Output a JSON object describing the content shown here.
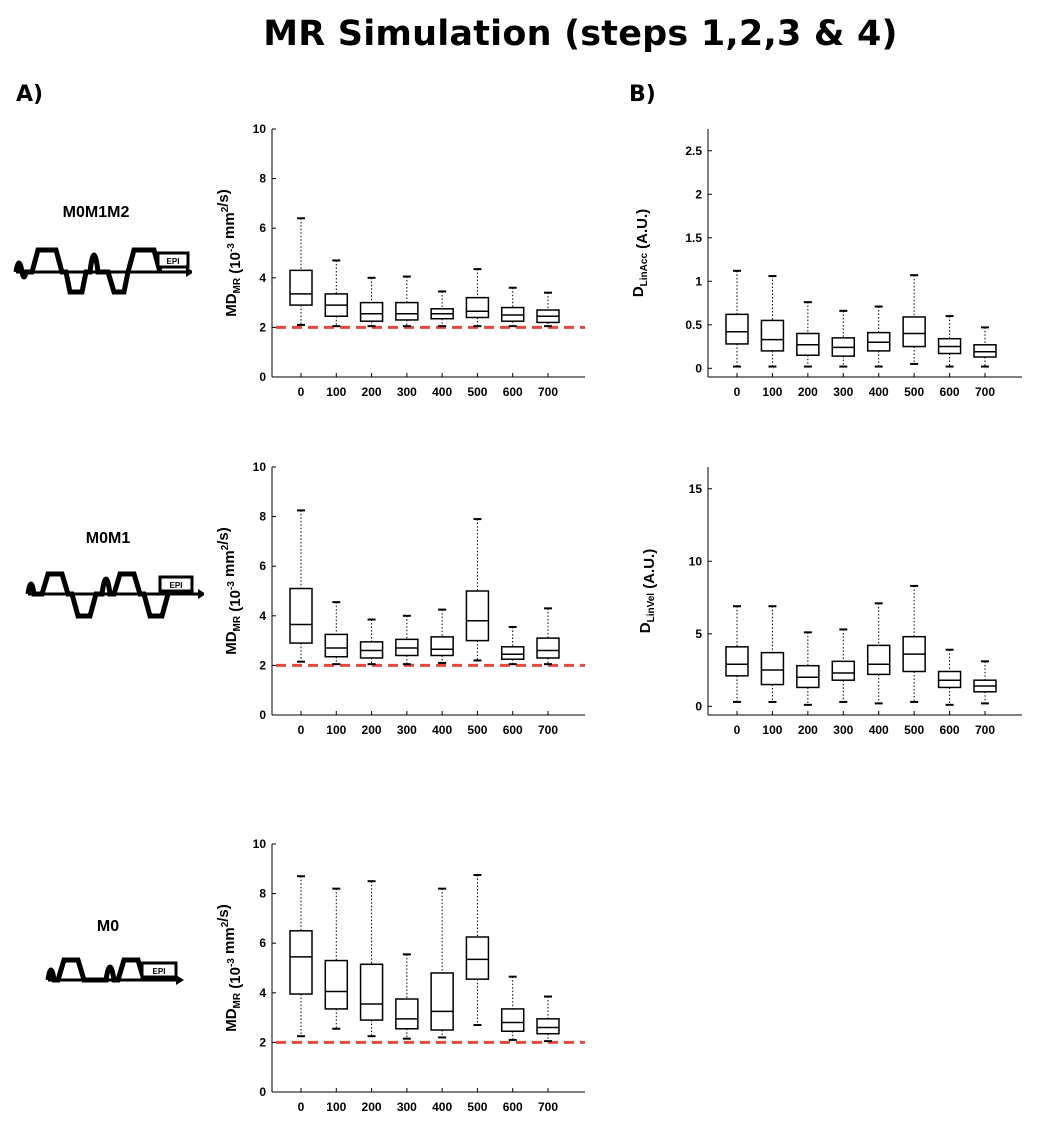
{
  "title": "MR Simulation (steps 1,2,3 & 4)",
  "panel_labels": {
    "a": "A)",
    "b": "B)"
  },
  "sequences": [
    {
      "name": "M0M1M2",
      "epi": "EPI"
    },
    {
      "name": "M0M1",
      "epi": "EPI"
    },
    {
      "name": "M0",
      "epi": "EPI"
    }
  ],
  "colors": {
    "reference_line": "#e8473f",
    "box": "#000000",
    "axis": "#000000"
  },
  "chart_data": [
    {
      "id": "md-m0m1m2",
      "type": "box",
      "categories": [
        "0",
        "100",
        "200",
        "300",
        "400",
        "500",
        "600",
        "700"
      ],
      "ylim": [
        0,
        10
      ],
      "yticks": [
        "0",
        "2",
        "4",
        "6",
        "8",
        "10"
      ],
      "ytick_values": [
        0,
        2,
        4,
        6,
        8,
        10
      ],
      "ylabel": {
        "main": "MD",
        "sub": "MR",
        "rest": " (10",
        "sup": "-3",
        "unit": " mm",
        "sup2": "2",
        "tail": "/s)"
      },
      "reference_line": 2,
      "boxes": [
        {
          "min": 2.1,
          "q1": 2.9,
          "median": 3.35,
          "q3": 4.3,
          "max": 6.4
        },
        {
          "min": 2.05,
          "q1": 2.45,
          "median": 2.9,
          "q3": 3.35,
          "max": 4.7
        },
        {
          "min": 2.05,
          "q1": 2.25,
          "median": 2.55,
          "q3": 3.0,
          "max": 4.0
        },
        {
          "min": 2.05,
          "q1": 2.3,
          "median": 2.55,
          "q3": 3.0,
          "max": 4.05
        },
        {
          "min": 2.05,
          "q1": 2.35,
          "median": 2.55,
          "q3": 2.75,
          "max": 3.45
        },
        {
          "min": 2.05,
          "q1": 2.4,
          "median": 2.65,
          "q3": 3.2,
          "max": 4.35
        },
        {
          "min": 2.05,
          "q1": 2.25,
          "median": 2.5,
          "q3": 2.8,
          "max": 3.6
        },
        {
          "min": 2.05,
          "q1": 2.2,
          "median": 2.45,
          "q3": 2.7,
          "max": 3.4
        }
      ]
    },
    {
      "id": "d-linacc",
      "type": "box",
      "categories": [
        "0",
        "100",
        "200",
        "300",
        "400",
        "500",
        "600",
        "700"
      ],
      "ylim": [
        -0.1,
        2.75
      ],
      "yticks": [
        "0",
        "0.5",
        "1",
        "1.5",
        "2",
        "2.5"
      ],
      "ytick_values": [
        0,
        0.5,
        1,
        1.5,
        2,
        2.5
      ],
      "ylabel": {
        "main": "D",
        "sub": "LinAcc",
        "rest": " (A.U.)"
      },
      "boxes": [
        {
          "min": 0.02,
          "q1": 0.28,
          "median": 0.42,
          "q3": 0.62,
          "max": 1.12
        },
        {
          "min": 0.02,
          "q1": 0.2,
          "median": 0.33,
          "q3": 0.55,
          "max": 1.06
        },
        {
          "min": 0.02,
          "q1": 0.15,
          "median": 0.27,
          "q3": 0.4,
          "max": 0.76
        },
        {
          "min": 0.02,
          "q1": 0.14,
          "median": 0.24,
          "q3": 0.35,
          "max": 0.66
        },
        {
          "min": 0.02,
          "q1": 0.2,
          "median": 0.3,
          "q3": 0.41,
          "max": 0.71
        },
        {
          "min": 0.05,
          "q1": 0.25,
          "median": 0.4,
          "q3": 0.59,
          "max": 1.07
        },
        {
          "min": 0.02,
          "q1": 0.17,
          "median": 0.25,
          "q3": 0.34,
          "max": 0.6
        },
        {
          "min": 0.02,
          "q1": 0.13,
          "median": 0.19,
          "q3": 0.27,
          "max": 0.47
        }
      ]
    },
    {
      "id": "md-m0m1",
      "type": "box",
      "categories": [
        "0",
        "100",
        "200",
        "300",
        "400",
        "500",
        "600",
        "700"
      ],
      "ylim": [
        0,
        10
      ],
      "yticks": [
        "0",
        "2",
        "4",
        "6",
        "8",
        "10"
      ],
      "ytick_values": [
        0,
        2,
        4,
        6,
        8,
        10
      ],
      "ylabel": {
        "main": "MD",
        "sub": "MR",
        "rest": " (10",
        "sup": "-3",
        "unit": " mm",
        "sup2": "2",
        "tail": "/s)"
      },
      "reference_line": 2,
      "boxes": [
        {
          "min": 2.15,
          "q1": 2.9,
          "median": 3.65,
          "q3": 5.1,
          "max": 8.25
        },
        {
          "min": 2.05,
          "q1": 2.35,
          "median": 2.7,
          "q3": 3.25,
          "max": 4.55
        },
        {
          "min": 2.05,
          "q1": 2.3,
          "median": 2.6,
          "q3": 2.95,
          "max": 3.85
        },
        {
          "min": 2.05,
          "q1": 2.4,
          "median": 2.7,
          "q3": 3.05,
          "max": 4.0
        },
        {
          "min": 2.1,
          "q1": 2.4,
          "median": 2.65,
          "q3": 3.15,
          "max": 4.25
        },
        {
          "min": 2.2,
          "q1": 3.0,
          "median": 3.8,
          "q3": 5.0,
          "max": 7.9
        },
        {
          "min": 2.05,
          "q1": 2.25,
          "median": 2.45,
          "q3": 2.75,
          "max": 3.55
        },
        {
          "min": 2.05,
          "q1": 2.3,
          "median": 2.6,
          "q3": 3.1,
          "max": 4.3
        }
      ]
    },
    {
      "id": "d-linvel",
      "type": "box",
      "categories": [
        "0",
        "100",
        "200",
        "300",
        "400",
        "500",
        "600",
        "700"
      ],
      "ylim": [
        -0.6,
        16.5
      ],
      "yticks": [
        "0",
        "5",
        "10",
        "15"
      ],
      "ytick_values": [
        0,
        5,
        10,
        15
      ],
      "ylabel": {
        "main": "D",
        "sub": "LinVel",
        "rest": " (A.U.)"
      },
      "boxes": [
        {
          "min": 0.3,
          "q1": 2.1,
          "median": 2.9,
          "q3": 4.1,
          "max": 6.9
        },
        {
          "min": 0.3,
          "q1": 1.5,
          "median": 2.5,
          "q3": 3.7,
          "max": 6.9
        },
        {
          "min": 0.1,
          "q1": 1.3,
          "median": 2.0,
          "q3": 2.8,
          "max": 5.1
        },
        {
          "min": 0.3,
          "q1": 1.8,
          "median": 2.3,
          "q3": 3.1,
          "max": 5.3
        },
        {
          "min": 0.2,
          "q1": 2.2,
          "median": 2.9,
          "q3": 4.2,
          "max": 7.1
        },
        {
          "min": 0.3,
          "q1": 2.4,
          "median": 3.6,
          "q3": 4.8,
          "max": 8.3
        },
        {
          "min": 0.1,
          "q1": 1.3,
          "median": 1.8,
          "q3": 2.4,
          "max": 3.9
        },
        {
          "min": 0.2,
          "q1": 1.0,
          "median": 1.4,
          "q3": 1.8,
          "max": 3.1
        }
      ]
    },
    {
      "id": "md-m0",
      "type": "box",
      "categories": [
        "0",
        "100",
        "200",
        "300",
        "400",
        "500",
        "600",
        "700"
      ],
      "ylim": [
        0,
        10
      ],
      "yticks": [
        "0",
        "2",
        "4",
        "6",
        "8",
        "10"
      ],
      "ytick_values": [
        0,
        2,
        4,
        6,
        8,
        10
      ],
      "ylabel": {
        "main": "MD",
        "sub": "MR",
        "rest": " (10",
        "sup": "-3",
        "unit": " mm",
        "sup2": "2",
        "tail": "/s)"
      },
      "reference_line": 2,
      "boxes": [
        {
          "min": 2.25,
          "q1": 3.95,
          "median": 5.45,
          "q3": 6.5,
          "max": 8.7
        },
        {
          "min": 2.55,
          "q1": 3.35,
          "median": 4.05,
          "q3": 5.3,
          "max": 8.2
        },
        {
          "min": 2.25,
          "q1": 2.9,
          "median": 3.55,
          "q3": 5.15,
          "max": 8.5
        },
        {
          "min": 2.15,
          "q1": 2.55,
          "median": 2.95,
          "q3": 3.75,
          "max": 5.55
        },
        {
          "min": 2.2,
          "q1": 2.5,
          "median": 3.25,
          "q3": 4.8,
          "max": 8.2
        },
        {
          "min": 2.7,
          "q1": 4.55,
          "median": 5.35,
          "q3": 6.25,
          "max": 8.75
        },
        {
          "min": 2.1,
          "q1": 2.45,
          "median": 2.8,
          "q3": 3.35,
          "max": 4.65
        },
        {
          "min": 2.05,
          "q1": 2.35,
          "median": 2.6,
          "q3": 2.95,
          "max": 3.85
        }
      ]
    }
  ]
}
